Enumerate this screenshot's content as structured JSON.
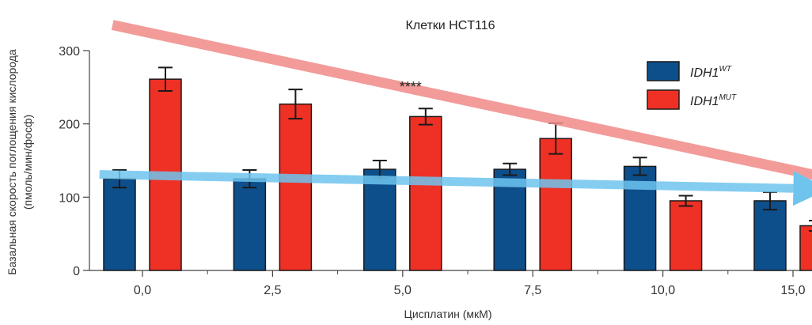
{
  "chart_data": {
    "type": "bar",
    "title": "Клетки HCT116",
    "xlabel": "Цисплатин (мкМ)",
    "ylabel_line1": "Базальная скорость поглощения кислорода",
    "ylabel_line2": "(пмоль/мин/фосф)",
    "ylim": [
      0,
      300
    ],
    "yticks": [
      "0",
      "100",
      "200",
      "300"
    ],
    "categories": [
      "0,0",
      "2,5",
      "5,0",
      "7,5",
      "10,0",
      "15,0"
    ],
    "series": [
      {
        "name": "IDH1",
        "name_sup": "WT",
        "color": "#0d4f8b",
        "values": [
          125,
          125,
          138,
          138,
          142,
          95
        ],
        "errors": [
          12,
          12,
          12,
          8,
          12,
          12
        ]
      },
      {
        "name": "IDH1",
        "name_sup": "MUT",
        "color": "#ee3124",
        "values": [
          261,
          227,
          210,
          180,
          95,
          61
        ],
        "errors": [
          16,
          20,
          11,
          21,
          7,
          7
        ]
      }
    ],
    "annotations": [
      {
        "text": "****",
        "category_index": 2
      }
    ],
    "trend_arrows": [
      {
        "color": "#f08a87",
        "from_value": 335,
        "to_value": 113,
        "from_category": -0.23,
        "to_category": 5.62
      },
      {
        "color": "#6fc4ee",
        "from_value": 131,
        "to_value": 111,
        "from_category": -0.33,
        "to_category": 5.27
      }
    ],
    "grid": false,
    "legend_position": "top-right"
  }
}
